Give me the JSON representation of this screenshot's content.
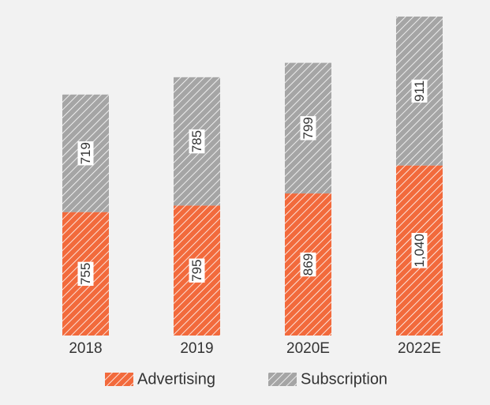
{
  "chart_data": {
    "type": "stacked-bar",
    "categories": [
      "2018",
      "2019",
      "2020E",
      "2022E"
    ],
    "series": [
      {
        "name": "Advertising",
        "color": "#f26a3c",
        "values": [
          755,
          795,
          869,
          1040
        ],
        "value_labels": [
          "755",
          "795",
          "869",
          "1,040"
        ]
      },
      {
        "name": "Subscription",
        "color": "#a5a5a5",
        "values": [
          719,
          785,
          799,
          911
        ],
        "value_labels": [
          "719",
          "785",
          "799",
          "911"
        ]
      }
    ],
    "legend": "bottom"
  }
}
